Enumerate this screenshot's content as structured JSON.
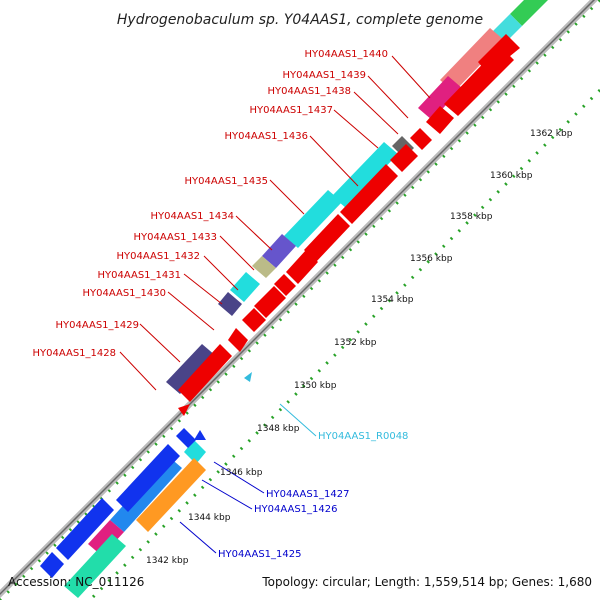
{
  "title": "Hydrogenobaculum sp. Y04AAS1, complete genome",
  "footer": {
    "accession": "Accession: NC_011126",
    "summary": "Topology: circular; Length: 1,559,514 bp; Genes: 1,680"
  },
  "colors": {
    "backbone": "#aaaaaa",
    "forward_label": "#cc0000",
    "reverse_label": "#0000cc",
    "rna_label": "#33bbdd",
    "tick_dots": "#119911"
  },
  "ticks": [
    "1342 kbp",
    "1344 kbp",
    "1346 kbp",
    "1348 kbp",
    "1350 kbp",
    "1352 kbp",
    "1354 kbp",
    "1356 kbp",
    "1358 kbp",
    "1360 kbp",
    "1362 kbp"
  ],
  "forward_gene_labels": [
    "HY04AAS1_1440",
    "HY04AAS1_1439",
    "HY04AAS1_1438",
    "HY04AAS1_1437",
    "HY04AAS1_1436",
    "HY04AAS1_1435",
    "HY04AAS1_1434",
    "HY04AAS1_1433",
    "HY04AAS1_1432",
    "HY04AAS1_1431",
    "HY04AAS1_1430",
    "HY04AAS1_1429",
    "HY04AAS1_1428"
  ],
  "reverse_gene_labels": [
    "HY04AAS1_R0048",
    "HY04AAS1_1427",
    "HY04AAS1_1426",
    "HY04AAS1_1425"
  ]
}
